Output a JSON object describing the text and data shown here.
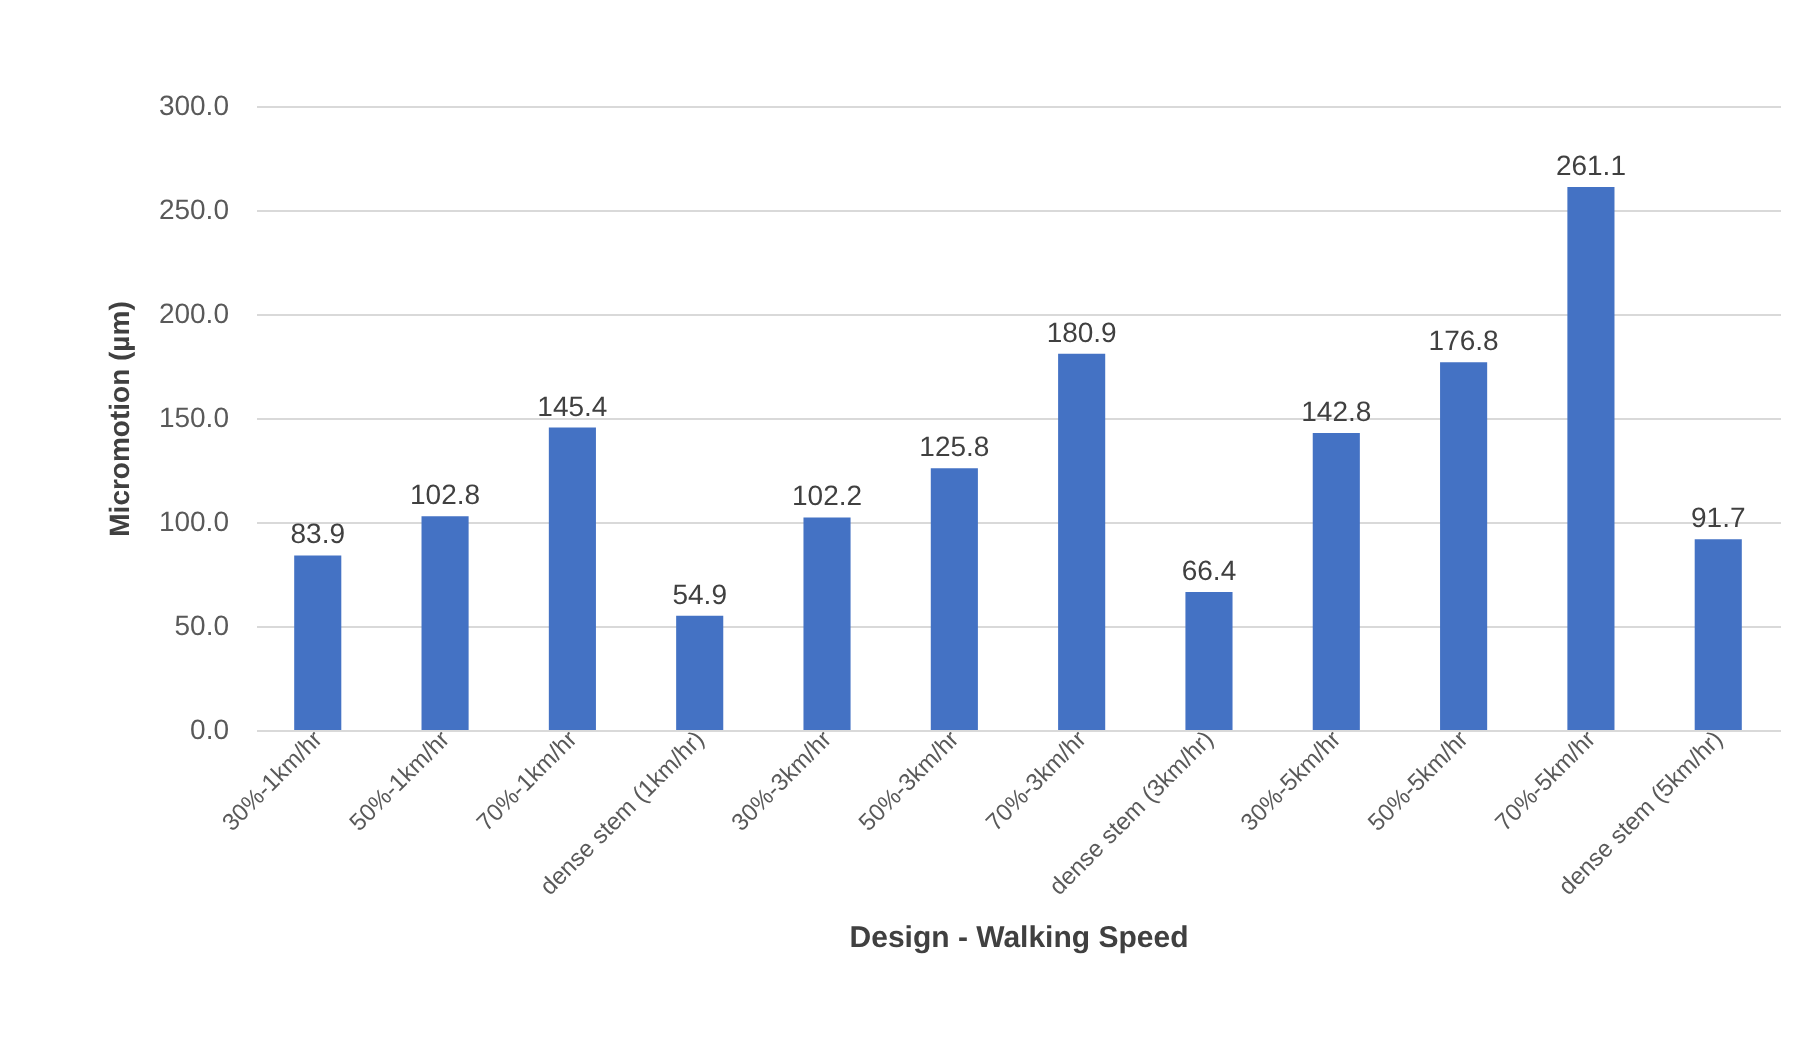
{
  "chart_data": {
    "type": "bar",
    "xlabel": "Design - Walking Speed",
    "ylabel": "Micromotion (µm)",
    "categories": [
      "30%-1km/hr",
      "50%-1km/hr",
      "70%-1km/hr",
      "dense stem (1km/hr)",
      "30%-3km/hr",
      "50%-3km/hr",
      "70%-3km/hr",
      "dense stem (3km/hr)",
      "30%-5km/hr",
      "50%-5km/hr",
      "70%-5km/hr",
      "dense stem (5km/hr)"
    ],
    "values": [
      83.9,
      102.8,
      145.4,
      54.9,
      102.2,
      125.8,
      180.9,
      66.4,
      142.8,
      176.8,
      261.1,
      91.7
    ],
    "color": "#4472c4",
    "ylim": [
      0,
      300
    ],
    "yticks": [
      {
        "value": 0,
        "label": "0.0"
      },
      {
        "value": 50,
        "label": "50.0"
      },
      {
        "value": 100,
        "label": "100.0"
      },
      {
        "value": 150,
        "label": "150.0"
      },
      {
        "value": 200,
        "label": "200.0"
      },
      {
        "value": 250,
        "label": "250.0"
      },
      {
        "value": 300,
        "label": "300.0"
      }
    ],
    "grid": "y",
    "data_labels": true
  }
}
